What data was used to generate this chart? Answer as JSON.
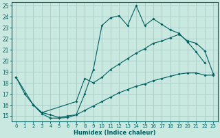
{
  "xlabel": "Humidex (Indice chaleur)",
  "bg_color": "#c8e8e0",
  "grid_color": "#a8ccc8",
  "line_color": "#006060",
  "xlim": [
    -0.5,
    23.5
  ],
  "ylim": [
    14.5,
    25.3
  ],
  "yticks": [
    15,
    16,
    17,
    18,
    19,
    20,
    21,
    22,
    23,
    24,
    25
  ],
  "xticks": [
    0,
    1,
    2,
    3,
    4,
    5,
    6,
    7,
    8,
    9,
    10,
    11,
    12,
    13,
    14,
    15,
    16,
    17,
    18,
    19,
    20,
    21,
    22,
    23
  ],
  "line1_x": [
    0,
    1,
    2,
    3,
    4,
    5,
    6,
    7,
    8,
    9,
    10,
    11,
    12,
    13,
    14,
    15,
    16,
    17,
    18,
    19,
    20,
    21,
    22
  ],
  "line1_y": [
    18.5,
    17.0,
    16.0,
    15.2,
    14.8,
    14.8,
    14.85,
    15.1,
    17.0,
    19.2,
    23.2,
    23.9,
    24.1,
    23.2,
    25.0,
    23.2,
    23.8,
    23.3,
    22.8,
    22.5,
    21.7,
    20.8,
    19.8
  ],
  "line2_x": [
    0,
    2,
    3,
    7,
    8,
    9,
    10,
    11,
    12,
    13,
    14,
    15,
    16,
    17,
    18,
    19,
    20,
    21,
    22,
    23
  ],
  "line2_y": [
    18.5,
    16.0,
    15.3,
    16.3,
    18.4,
    18.0,
    18.5,
    19.2,
    19.7,
    20.2,
    20.7,
    21.1,
    21.6,
    21.8,
    22.1,
    22.4,
    21.8,
    21.6,
    20.9,
    18.8
  ],
  "line3_x": [
    2,
    3,
    4,
    5,
    6,
    7,
    8,
    9,
    10,
    11,
    12,
    13,
    14,
    15,
    16,
    17,
    18,
    19,
    20,
    21,
    22,
    23
  ],
  "line3_y": [
    16.0,
    15.3,
    15.1,
    14.85,
    15.0,
    15.1,
    15.5,
    15.9,
    16.3,
    16.7,
    17.1,
    17.4,
    17.7,
    17.9,
    18.2,
    18.4,
    18.6,
    18.8,
    18.9,
    18.9,
    18.7,
    18.7
  ]
}
